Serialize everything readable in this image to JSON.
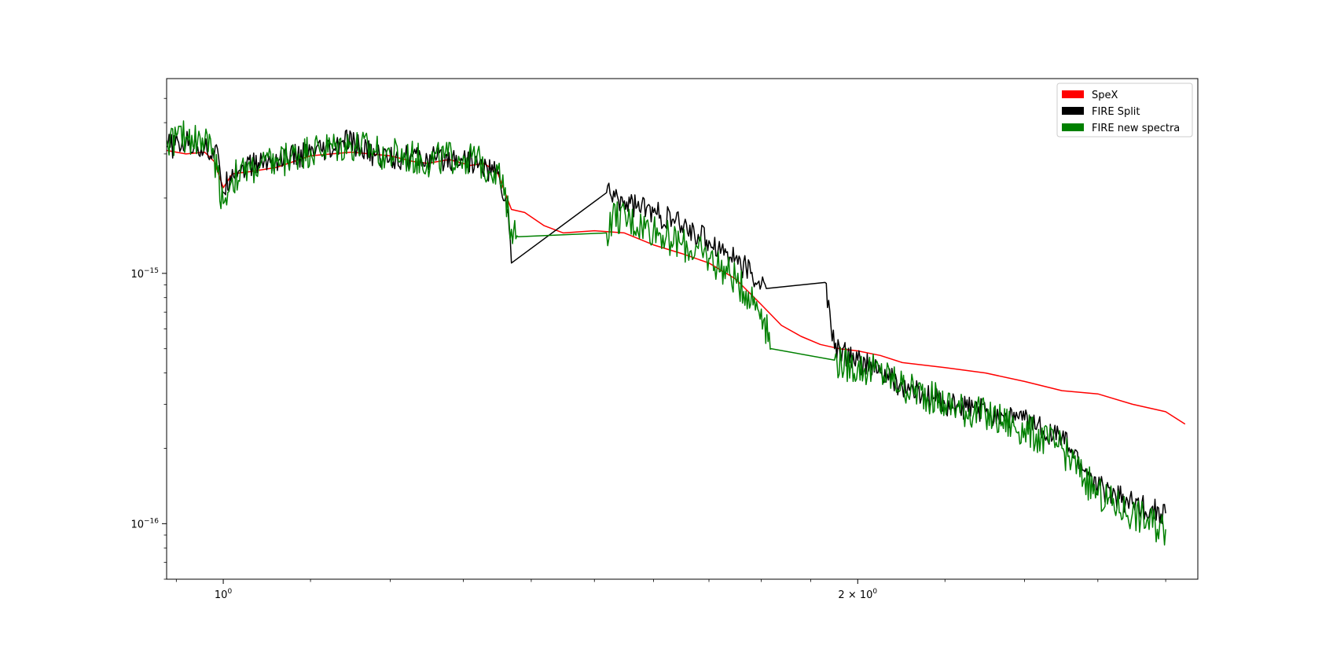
{
  "chart_data": {
    "type": "line",
    "title": "",
    "xlabel": "",
    "ylabel": "",
    "xscale": "log",
    "yscale": "log",
    "xlim": [
      0.94,
      2.9
    ],
    "ylim": [
      6e-17,
      6e-15
    ],
    "grid": false,
    "legend_position": "top-right",
    "x_ticks": [
      {
        "value": 1.0,
        "base": "10",
        "exp": "0"
      },
      {
        "value": 2.0,
        "base": "2 × 10",
        "exp": "0"
      }
    ],
    "y_ticks": [
      {
        "value": 1e-15,
        "base": "10",
        "exp": "−15"
      },
      {
        "value": 1e-16,
        "base": "10",
        "exp": "−16"
      }
    ],
    "series": [
      {
        "name": "SpeX",
        "color": "#ff0000",
        "noise": 0.0,
        "points": [
          [
            0.94,
            3.1e-15
          ],
          [
            0.96,
            3e-15
          ],
          [
            0.98,
            3.05e-15
          ],
          [
            0.99,
            2.8e-15
          ],
          [
            1.0,
            2.2e-15
          ],
          [
            1.01,
            2.5e-15
          ],
          [
            1.03,
            2.55e-15
          ],
          [
            1.06,
            2.65e-15
          ],
          [
            1.1,
            2.95e-15
          ],
          [
            1.15,
            3.05e-15
          ],
          [
            1.2,
            2.95e-15
          ],
          [
            1.23,
            2.8e-15
          ],
          [
            1.25,
            2.75e-15
          ],
          [
            1.28,
            2.85e-15
          ],
          [
            1.31,
            2.7e-15
          ],
          [
            1.33,
            2.75e-15
          ],
          [
            1.35,
            2.5e-15
          ],
          [
            1.37,
            1.8e-15
          ],
          [
            1.39,
            1.75e-15
          ],
          [
            1.42,
            1.55e-15
          ],
          [
            1.45,
            1.45e-15
          ],
          [
            1.5,
            1.48e-15
          ],
          [
            1.55,
            1.45e-15
          ],
          [
            1.6,
            1.3e-15
          ],
          [
            1.65,
            1.2e-15
          ],
          [
            1.7,
            1.1e-15
          ],
          [
            1.75,
            9.5e-16
          ],
          [
            1.8,
            7.5e-16
          ],
          [
            1.84,
            6.2e-16
          ],
          [
            1.88,
            5.6e-16
          ],
          [
            1.92,
            5.2e-16
          ],
          [
            1.96,
            5e-16
          ],
          [
            2.0,
            4.9e-16
          ],
          [
            2.05,
            4.7e-16
          ],
          [
            2.1,
            4.4e-16
          ],
          [
            2.2,
            4.2e-16
          ],
          [
            2.3,
            4e-16
          ],
          [
            2.4,
            3.7e-16
          ],
          [
            2.5,
            3.4e-16
          ],
          [
            2.6,
            3.3e-16
          ],
          [
            2.7,
            3e-16
          ],
          [
            2.8,
            2.8e-16
          ],
          [
            2.86,
            2.5e-16
          ]
        ]
      },
      {
        "name": "FIRE Split",
        "color": "#000000",
        "noise": 0.05,
        "points": [
          [
            0.94,
            3.2e-15
          ],
          [
            0.96,
            3.3e-15
          ],
          [
            0.98,
            3.2e-15
          ],
          [
            0.995,
            2.9e-15
          ],
          [
            1.0,
            2.1e-15
          ],
          [
            1.01,
            2.6e-15
          ],
          [
            1.05,
            2.8e-15
          ],
          [
            1.1,
            3e-15
          ],
          [
            1.13,
            3.1e-15
          ],
          [
            1.14,
            3.4e-15
          ],
          [
            1.16,
            3.2e-15
          ],
          [
            1.18,
            2.95e-15
          ],
          [
            1.22,
            2.9e-15
          ],
          [
            1.25,
            2.85e-15
          ],
          [
            1.3,
            2.9e-15
          ],
          [
            1.35,
            2.5e-15
          ],
          [
            1.365,
            1.8e-15
          ],
          [
            1.37,
            1.1e-15
          ],
          [
            1.52,
            2.1e-15
          ],
          [
            1.55,
            1.95e-15
          ],
          [
            1.6,
            1.75e-15
          ],
          [
            1.65,
            1.55e-15
          ],
          [
            1.7,
            1.35e-15
          ],
          [
            1.75,
            1.15e-15
          ],
          [
            1.8,
            9e-16
          ],
          [
            1.81,
            8.7e-16
          ],
          [
            1.93,
            9.2e-16
          ],
          [
            1.95,
            5e-16
          ],
          [
            2.0,
            4.5e-16
          ],
          [
            2.05,
            4e-16
          ],
          [
            2.1,
            3.5e-16
          ],
          [
            2.2,
            3e-16
          ],
          [
            2.3,
            2.8e-16
          ],
          [
            2.4,
            2.6e-16
          ],
          [
            2.5,
            2.2e-16
          ],
          [
            2.6,
            1.4e-16
          ],
          [
            2.7,
            1.2e-16
          ],
          [
            2.8,
            1.1e-16
          ]
        ]
      },
      {
        "name": "FIRE new spectra",
        "color": "#008000",
        "noise": 0.07,
        "points": [
          [
            0.94,
            3.4e-15
          ],
          [
            0.96,
            3.5e-15
          ],
          [
            0.98,
            3.4e-15
          ],
          [
            0.99,
            3e-15
          ],
          [
            1.0,
            1.9e-15
          ],
          [
            1.01,
            2.4e-15
          ],
          [
            1.03,
            2.6e-15
          ],
          [
            1.06,
            2.8e-15
          ],
          [
            1.1,
            3.1e-15
          ],
          [
            1.15,
            3.25e-15
          ],
          [
            1.2,
            3e-15
          ],
          [
            1.25,
            2.8e-15
          ],
          [
            1.3,
            2.95e-15
          ],
          [
            1.35,
            2.6e-15
          ],
          [
            1.37,
            1.5e-15
          ],
          [
            1.38,
            1.4e-15
          ],
          [
            1.52,
            1.45e-15
          ],
          [
            1.53,
            1.7e-15
          ],
          [
            1.6,
            1.5e-15
          ],
          [
            1.65,
            1.3e-15
          ],
          [
            1.7,
            1.15e-15
          ],
          [
            1.75,
            9.5e-16
          ],
          [
            1.8,
            7.2e-16
          ],
          [
            1.82,
            5e-16
          ],
          [
            1.95,
            4.5e-16
          ],
          [
            2.0,
            4.2e-16
          ],
          [
            2.05,
            4e-16
          ],
          [
            2.1,
            3.6e-16
          ],
          [
            2.2,
            3e-16
          ],
          [
            2.3,
            2.7e-16
          ],
          [
            2.4,
            2.4e-16
          ],
          [
            2.5,
            2e-16
          ],
          [
            2.6,
            1.3e-16
          ],
          [
            2.7,
            1.1e-16
          ],
          [
            2.8,
            9.5e-17
          ]
        ]
      }
    ]
  }
}
